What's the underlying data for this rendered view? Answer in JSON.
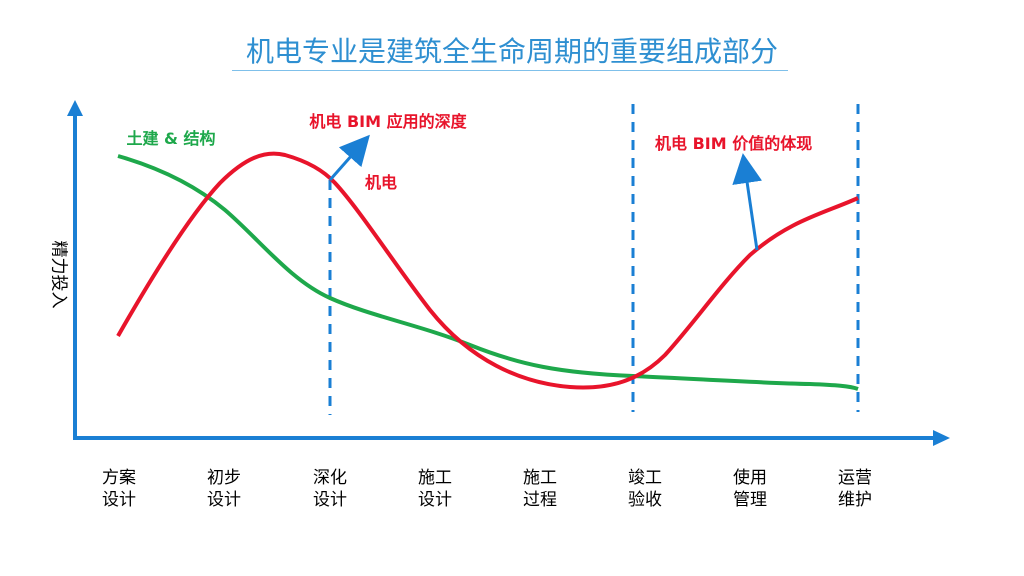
{
  "title": "机电专业是建筑全生命周期的重要组成部分",
  "y_axis_label": "精力投入",
  "stages": [
    {
      "line1": "方案",
      "line2": "设计"
    },
    {
      "line1": "初步",
      "line2": "设计"
    },
    {
      "line1": "深化",
      "line2": "设计"
    },
    {
      "line1": "施工",
      "line2": "设计"
    },
    {
      "line1": "施工",
      "line2": "过程"
    },
    {
      "line1": "竣工",
      "line2": "验收"
    },
    {
      "line1": "使用",
      "line2": "管理"
    },
    {
      "line1": "运营",
      "line2": "维护"
    }
  ],
  "annotations": {
    "civil_structure": "土建 & 结构",
    "mep_curve": "机电",
    "bim_depth": "机电 BIM 应用的深度",
    "bim_value": "机电 BIM 价值的体现"
  },
  "colors": {
    "title": "#2e8fd1",
    "axis": "#1a7fd4",
    "mep_curve": "#e8142b",
    "civil_curve": "#1ea84b",
    "dashed_marker": "#1a7fd4"
  },
  "icons": {
    "arrow": "arrow-icon"
  }
}
